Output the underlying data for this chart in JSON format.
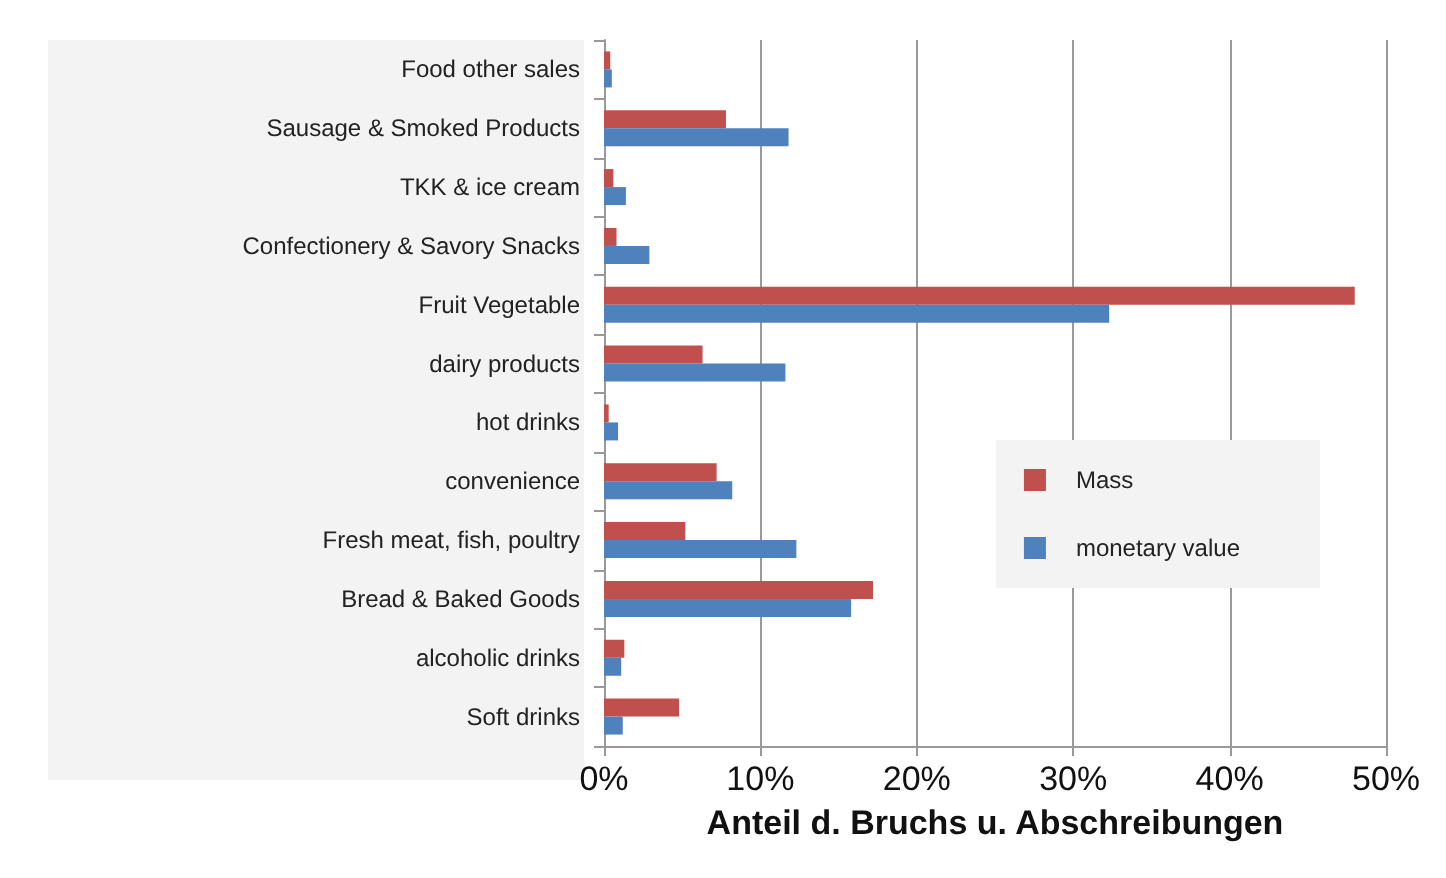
{
  "chart_data": {
    "type": "bar",
    "orientation": "horizontal",
    "xlabel": "Anteil d. Bruchs u. Abschreibungen",
    "categories": [
      "Food other sales",
      "Sausage & Smoked Products",
      "TKK & ice cream",
      "Confectionery & Savory Snacks",
      "Fruit Vegetable",
      "dairy products",
      "hot drinks",
      "convenience",
      "Fresh meat, fish, poultry",
      "Bread & Baked Goods",
      "alcoholic drinks",
      "Soft drinks"
    ],
    "series": [
      {
        "name": "Mass",
        "color": "#c0504d",
        "values": [
          0.4,
          7.8,
          0.6,
          0.8,
          48.0,
          6.3,
          0.3,
          7.2,
          5.2,
          17.2,
          1.3,
          4.8
        ]
      },
      {
        "name": "monetary value",
        "color": "#4f81bd",
        "values": [
          0.5,
          11.8,
          1.4,
          2.9,
          32.3,
          11.6,
          0.9,
          8.2,
          12.3,
          15.8,
          1.1,
          1.2
        ]
      }
    ],
    "xlim": [
      0,
      50
    ],
    "xticks": [
      {
        "value": 0,
        "label": "0%"
      },
      {
        "value": 10,
        "label": "10%"
      },
      {
        "value": 20,
        "label": "20%"
      },
      {
        "value": 30,
        "label": "30%"
      },
      {
        "value": 40,
        "label": "40%"
      },
      {
        "value": 50,
        "label": "50%"
      }
    ],
    "grid": "x",
    "legend": "right"
  }
}
